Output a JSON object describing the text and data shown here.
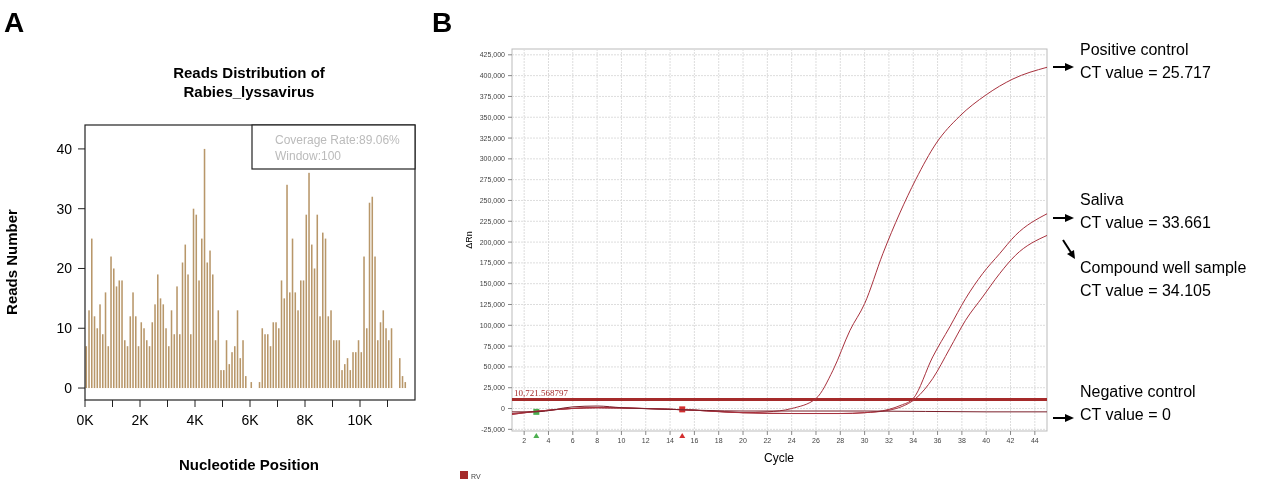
{
  "chart_data": [
    {
      "type": "histogram",
      "title": "Reads Distribution of\nRabies_lyssavirus",
      "xlabel": "Nucleotide Position",
      "ylabel": "Reads Number",
      "color": "#b8976a",
      "bins": [
        0,
        100,
        200,
        300,
        400,
        500,
        600,
        700,
        800,
        900,
        1000,
        1100,
        1200,
        1300,
        1400,
        1500,
        1600,
        1700,
        1800,
        1900,
        2000,
        2100,
        2200,
        2300,
        2400,
        2500,
        2600,
        2700,
        2800,
        2900,
        3000,
        3100,
        3200,
        3300,
        3400,
        3500,
        3600,
        3700,
        3800,
        3900,
        4000,
        4100,
        4200,
        4300,
        4400,
        4500,
        4600,
        4700,
        4800,
        4900,
        5000,
        5100,
        5200,
        5300,
        5400,
        5500,
        5600,
        5700,
        5800,
        5900,
        6000,
        6100,
        6200,
        6300,
        6400,
        6500,
        6600,
        6700,
        6800,
        6900,
        7000,
        7100,
        7200,
        7300,
        7400,
        7500,
        7600,
        7700,
        7800,
        7900,
        8000,
        8100,
        8200,
        8300,
        8400,
        8500,
        8600,
        8700,
        8800,
        8900,
        9000,
        9100,
        9200,
        9300,
        9400,
        9500,
        9600,
        9700,
        9800,
        9900,
        10000,
        10100,
        10200,
        10300,
        10400,
        10500,
        10600,
        10700,
        10800,
        10900,
        11000,
        11100,
        11200,
        11300,
        11400,
        11500,
        11600,
        11700
      ],
      "values": [
        7,
        13,
        25,
        12,
        10,
        14,
        9,
        16,
        7,
        22,
        20,
        17,
        18,
        18,
        8,
        7,
        12,
        16,
        12,
        7,
        11,
        10,
        8,
        7,
        11,
        14,
        19,
        15,
        14,
        10,
        7,
        13,
        9,
        17,
        9,
        21,
        24,
        19,
        9,
        30,
        29,
        18,
        25,
        40,
        21,
        23,
        19,
        8,
        13,
        3,
        3,
        8,
        4,
        6,
        7,
        13,
        5,
        8,
        2,
        0,
        1,
        0,
        0,
        1,
        10,
        9,
        9,
        7,
        11,
        11,
        10,
        18,
        15,
        34,
        16,
        25,
        16,
        13,
        18,
        18,
        29,
        36,
        24,
        20,
        29,
        12,
        26,
        25,
        12,
        13,
        8,
        8,
        8,
        3,
        4,
        5,
        3,
        6,
        6,
        8,
        6,
        22,
        10,
        31,
        32,
        22,
        8,
        11,
        13,
        10,
        8,
        10,
        0,
        0,
        5,
        2,
        1
      ],
      "xlim": [
        0,
        12000
      ],
      "ylim": [
        -2,
        44
      ],
      "xticks": [
        {
          "value": 0,
          "label": "0K"
        },
        {
          "value": 1000,
          "label": null
        },
        {
          "value": 2000,
          "label": "2K"
        },
        {
          "value": 3000,
          "label": null
        },
        {
          "value": 4000,
          "label": "4K"
        },
        {
          "value": 5000,
          "label": null
        },
        {
          "value": 6000,
          "label": "6K"
        },
        {
          "value": 7000,
          "label": null
        },
        {
          "value": 8000,
          "label": "8K"
        },
        {
          "value": 9000,
          "label": null
        },
        {
          "value": 10000,
          "label": "10K"
        },
        {
          "value": 11000,
          "label": null
        }
      ],
      "yticks": [
        0,
        10,
        20,
        30,
        40
      ],
      "annotations": [
        "A",
        "Coverage Rate:89.06%",
        "Window:100"
      ]
    },
    {
      "type": "line",
      "xlabel": "Cycle",
      "ylabel": "ΔRn",
      "grid": true,
      "xlim": [
        1,
        45
      ],
      "ylim": [
        -27000,
        432000
      ],
      "xticks": [
        2,
        4,
        6,
        8,
        10,
        12,
        14,
        16,
        18,
        20,
        22,
        24,
        26,
        28,
        30,
        32,
        34,
        36,
        38,
        40,
        42,
        44
      ],
      "yticks": [
        {
          "value": -25000,
          "label": "-25,000"
        },
        {
          "value": 0,
          "label": "0"
        },
        {
          "value": 25000,
          "label": "25,000"
        },
        {
          "value": 50000,
          "label": "50,000"
        },
        {
          "value": 75000,
          "label": "75,000"
        },
        {
          "value": 100000,
          "label": "100,000"
        },
        {
          "value": 125000,
          "label": "125,000"
        },
        {
          "value": 150000,
          "label": "150,000"
        },
        {
          "value": 175000,
          "label": "175,000"
        },
        {
          "value": 200000,
          "label": "200,000"
        },
        {
          "value": 225000,
          "label": "225,000"
        },
        {
          "value": 250000,
          "label": "250,000"
        },
        {
          "value": 275000,
          "label": "275,000"
        },
        {
          "value": 300000,
          "label": "300,000"
        },
        {
          "value": 325000,
          "label": "325,000"
        },
        {
          "value": 350000,
          "label": "350,000"
        },
        {
          "value": 375000,
          "label": "375,000"
        },
        {
          "value": 400000,
          "label": "400,000"
        },
        {
          "value": 425000,
          "label": "425,000"
        }
      ],
      "ref_lines": [
        {
          "axis": "y",
          "value": 10721.568797,
          "label": "10,721.568797",
          "color": "#a52a2a"
        }
      ],
      "series": [
        {
          "name": "Positive control",
          "color": "#a8323e",
          "x": [
            1,
            4,
            8,
            12,
            16,
            20,
            22,
            24,
            26,
            27.4,
            28.8,
            30,
            31.5,
            32.9,
            34.2,
            35.9,
            37.8,
            40,
            42.2,
            45
          ],
          "values": [
            -6000,
            -2000,
            1000,
            0,
            -2000,
            -5000,
            -4000,
            0,
            12000,
            46000,
            94000,
            126000,
            186000,
            235000,
            275000,
            319000,
            351000,
            377000,
            396000,
            410000
          ]
        },
        {
          "name": "Saliva",
          "color": "#a8323e",
          "x": [
            1,
            4,
            8,
            12,
            16,
            20,
            24,
            28,
            30,
            32,
            33,
            34,
            35.6,
            37,
            38.3,
            39.7,
            41.1,
            42.4,
            45
          ],
          "values": [
            -7000,
            -2000,
            1000,
            0,
            -2000,
            -5000,
            -6000,
            -6000,
            -5000,
            -1000,
            4000,
            12000,
            62000,
            98000,
            132000,
            162000,
            186000,
            208000,
            234000
          ]
        },
        {
          "name": "Compound well sample",
          "color": "#a8323e",
          "x": [
            1,
            4,
            8,
            12,
            16,
            20,
            24,
            28,
            30,
            32,
            33,
            34.2,
            35.6,
            37,
            38.3,
            39.7,
            41.1,
            42.4,
            45
          ],
          "values": [
            -7000,
            -2000,
            1000,
            0,
            -2000,
            -5000,
            -6000,
            -6000,
            -5000,
            -2000,
            2000,
            12000,
            36000,
            72000,
            106000,
            134000,
            162000,
            184000,
            208000
          ]
        },
        {
          "name": "Negative control",
          "color": "#7a1f2a",
          "x": [
            1,
            3,
            6,
            8,
            10,
            14,
            20,
            30,
            40,
            45
          ],
          "values": [
            -4000,
            -4000,
            2000,
            3000,
            1000,
            -1000,
            -3000,
            -3000,
            -4000,
            -4000
          ]
        }
      ],
      "annotations": [
        "B",
        "CT value = 25.717",
        "CT value = 33.661",
        "CT value = 34.105",
        "CT value = 0",
        "RV"
      ]
    }
  ]
}
